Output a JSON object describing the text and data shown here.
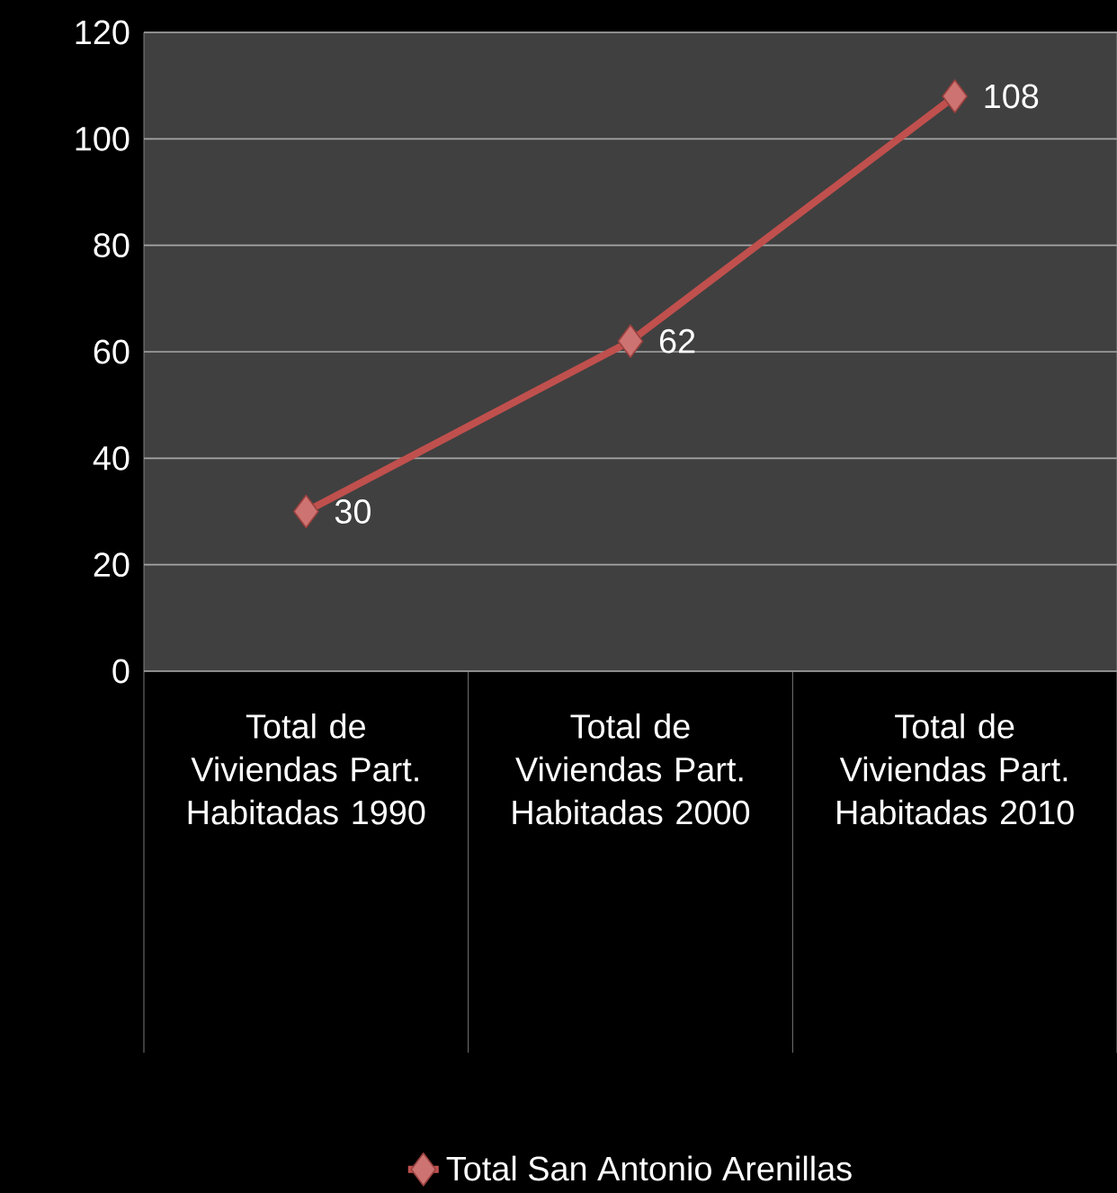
{
  "chart_data": {
    "type": "line",
    "categories": [
      "Total de Viviendas Part. Habitadas 1990",
      "Total de Viviendas Part. Habitadas 2000",
      "Total de Viviendas Part. Habitadas 2010"
    ],
    "series": [
      {
        "name": "Total San Antonio Arenillas",
        "color": "#c0504d",
        "values": [
          30,
          62,
          108
        ]
      }
    ],
    "ylim": [
      0,
      120
    ],
    "yticks": [
      0,
      20,
      40,
      60,
      80,
      100,
      120
    ],
    "grid": "y",
    "legend": "bottom",
    "marker": "diamond",
    "line_style": "solid",
    "data_labels": true
  }
}
